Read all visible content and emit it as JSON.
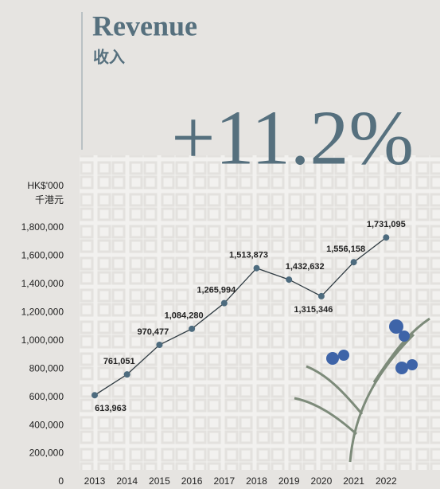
{
  "chart_data": {
    "type": "line",
    "title": "Revenue",
    "subtitle": "收入",
    "annotation": "+11.2%",
    "y_axis_label": "HK$'000",
    "y_axis_label_secondary": "千港元",
    "categories": [
      "2013",
      "2014",
      "2015",
      "2016",
      "2017",
      "2018",
      "2019",
      "2020",
      "2021",
      "2022"
    ],
    "series": [
      {
        "name": "Revenue",
        "color": "#4d6b7e",
        "values": [
          613963,
          761051,
          970477,
          1084280,
          1265994,
          1513873,
          1432632,
          1315346,
          1556158,
          1731095
        ],
        "value_labels": [
          "613,963",
          "761,051",
          "970,477",
          "1,084,280",
          "1,265,994",
          "1,513,873",
          "1,432,632",
          "1,315,346",
          "1,556,158",
          "1,731,095"
        ]
      }
    ],
    "ylim": [
      0,
      1800000
    ],
    "yticks": [
      0,
      {
        "value": 200000,
        "label": "200,000"
      },
      {
        "value": 400000,
        "label": "400,000"
      },
      {
        "value": 600000,
        "label": "600,000"
      },
      {
        "value": 800000,
        "label": "800,000"
      },
      {
        "value": 1000000,
        "label": "1,000,000"
      },
      {
        "value": 1200000,
        "label": "1,200,000"
      },
      {
        "value": 1400000,
        "label": "1,400,000"
      },
      {
        "value": 1600000,
        "label": "1,600,000"
      },
      {
        "value": 1800000,
        "label": "1,800,000"
      }
    ],
    "grid": false
  }
}
